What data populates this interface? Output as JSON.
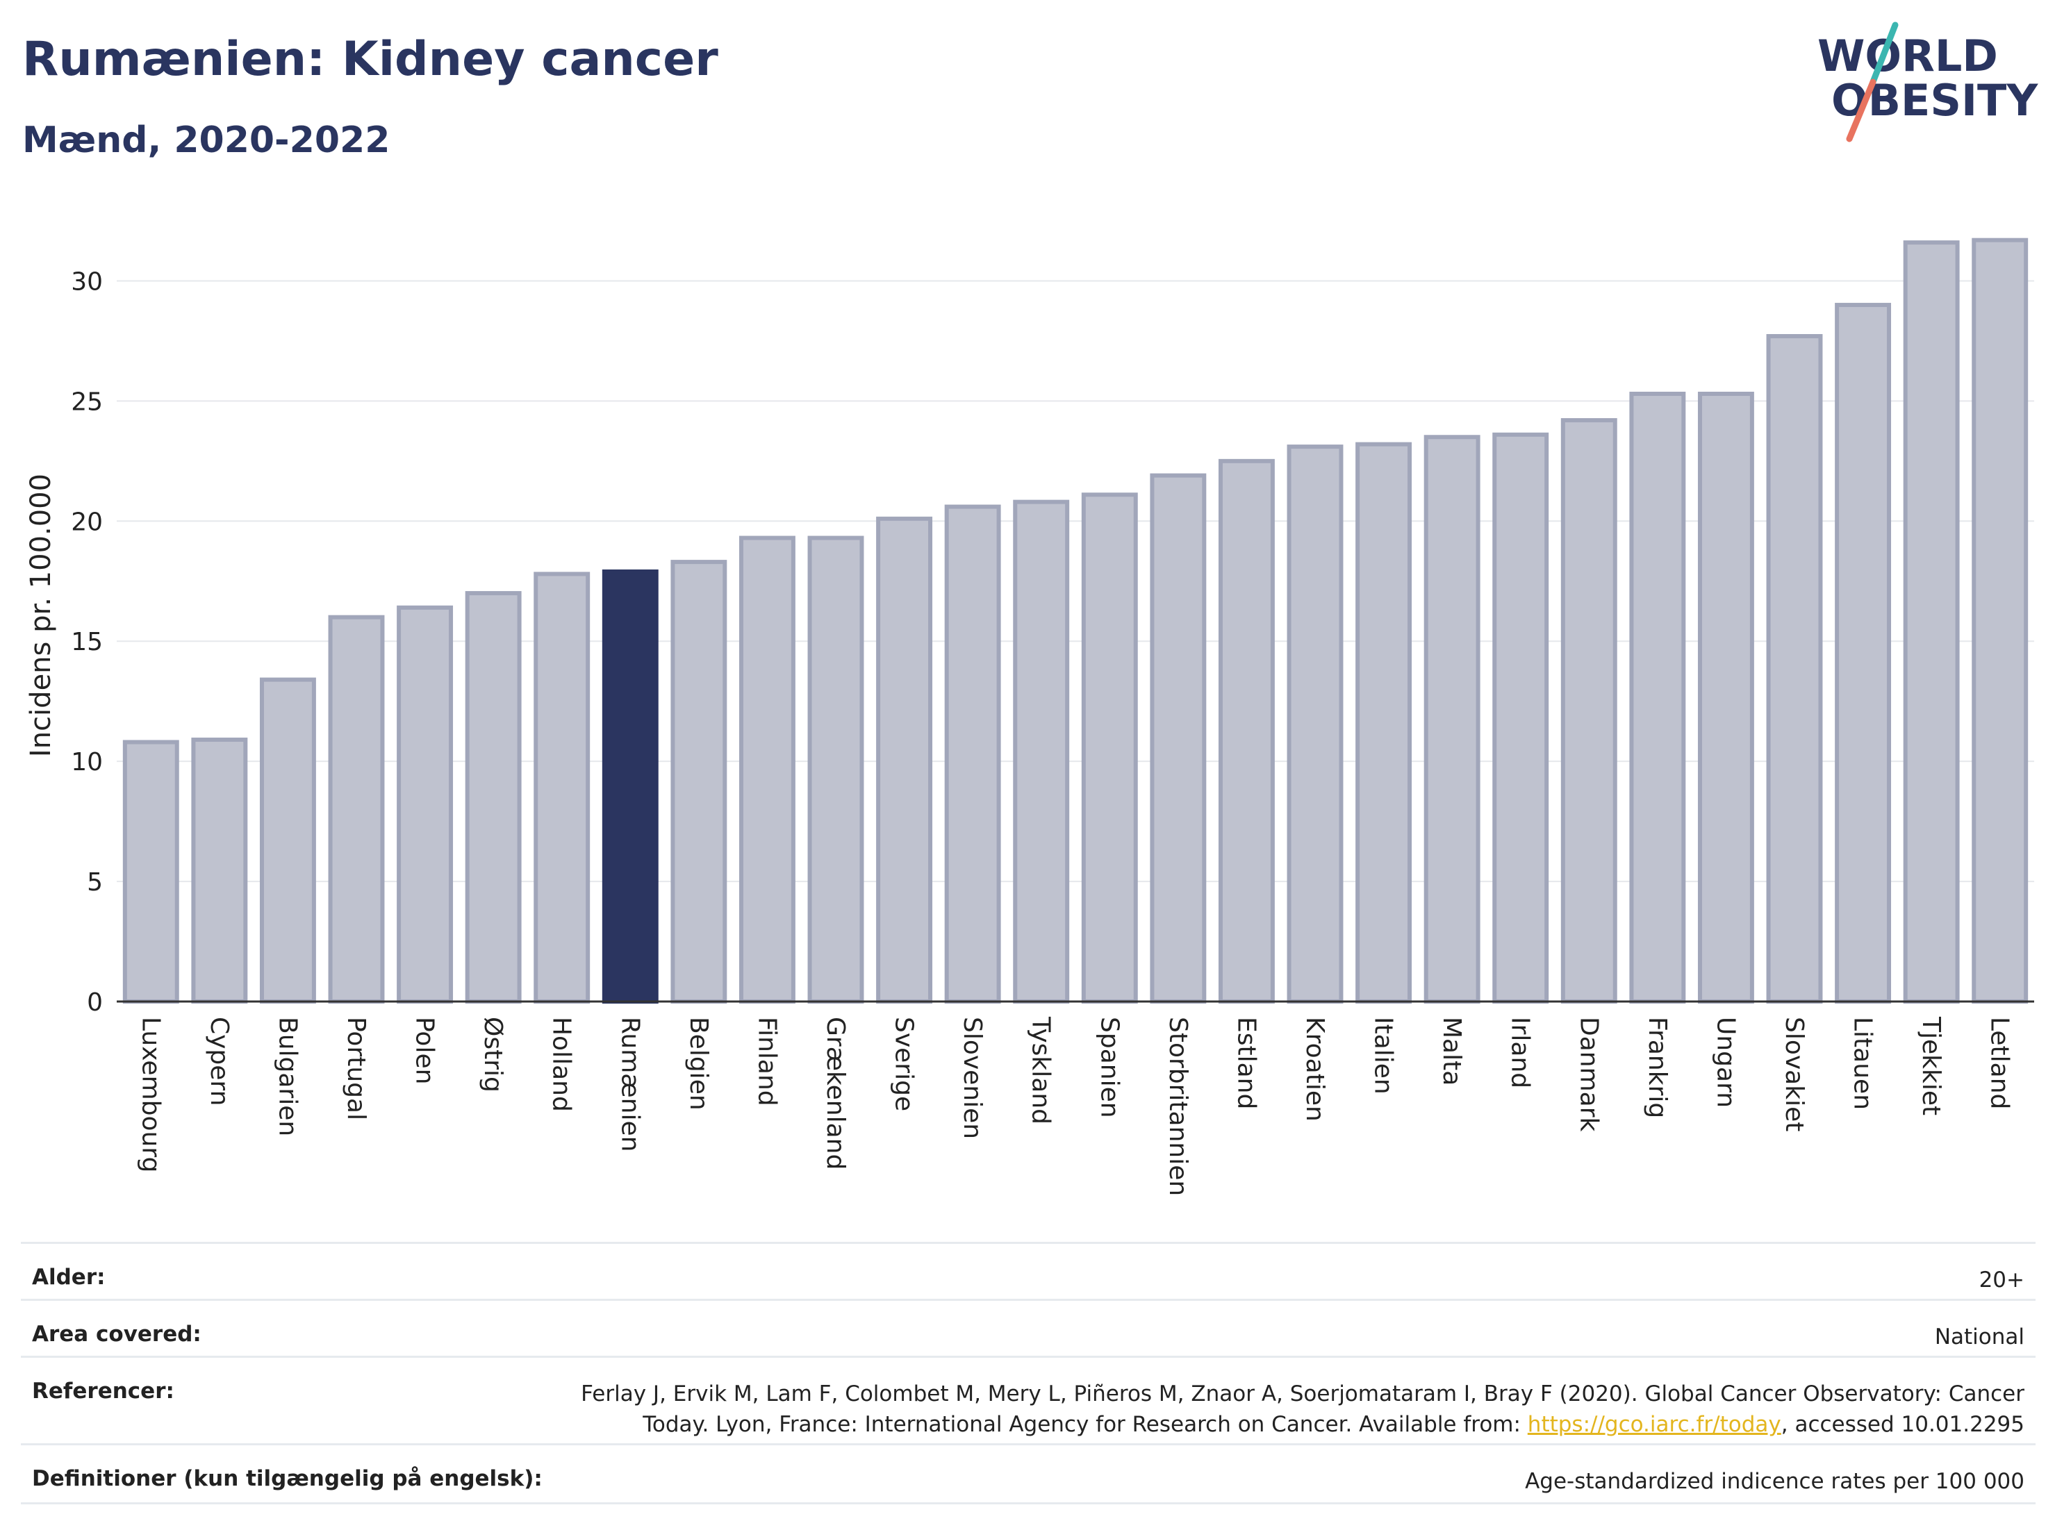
{
  "header": {
    "title": "Rumænien: Kidney cancer",
    "subtitle": "Mænd, 2020-2022"
  },
  "logo": {
    "line1": "WORLD",
    "line2": "OBESITY"
  },
  "chart_data": {
    "type": "bar",
    "ylabel": "Incidens pr. 100.000",
    "xlabel": "",
    "ylim": [
      0,
      32.5
    ],
    "yticks": [
      0,
      5,
      10,
      15,
      20,
      25,
      30
    ],
    "grid": true,
    "highlight": "Rumænien",
    "colors": {
      "bar": "#bfc2cf",
      "bar_edge": "#a1a6ba",
      "highlight": "#2b3560"
    },
    "categories": [
      "Luxembourg",
      "Cypern",
      "Bulgarien",
      "Portugal",
      "Polen",
      "Østrig",
      "Holland",
      "Rumænien",
      "Belgien",
      "Finland",
      "Grækenland",
      "Sverige",
      "Slovenien",
      "Tyskland",
      "Spanien",
      "Storbritannien",
      "Estland",
      "Kroatien",
      "Italien",
      "Malta",
      "Irland",
      "Danmark",
      "Frankrig",
      "Ungarn",
      "Slovakiet",
      "Litauen",
      "Tjekkiet",
      "Letland"
    ],
    "values": [
      10.8,
      10.9,
      13.4,
      16.0,
      16.4,
      17.0,
      17.8,
      17.9,
      18.3,
      19.3,
      19.3,
      20.1,
      20.6,
      20.8,
      21.1,
      21.9,
      22.5,
      23.1,
      23.2,
      23.5,
      23.6,
      24.2,
      25.3,
      25.3,
      27.7,
      29.0,
      31.6,
      31.7
    ]
  },
  "info": {
    "age_label": "Alder:",
    "age_value": "20+",
    "area_label": "Area covered:",
    "area_value": "National",
    "ref_label": "Referencer:",
    "ref_line1": "Ferlay J, Ervik M, Lam F, Colombet M, Mery L, Piñeros M, Znaor A, Soerjomataram I, Bray F (2020). Global Cancer Observatory: Cancer",
    "ref_line2_pre": "Today. Lyon, France: International Agency for Research on Cancer. Available from: ",
    "ref_link": "https://gco.iarc.fr/today",
    "ref_line2_post": ", accessed 10.01.2295",
    "def_label": "Definitioner (kun tilgængelig på engelsk):",
    "def_value": "Age-standardized indicence rates per 100 000"
  }
}
